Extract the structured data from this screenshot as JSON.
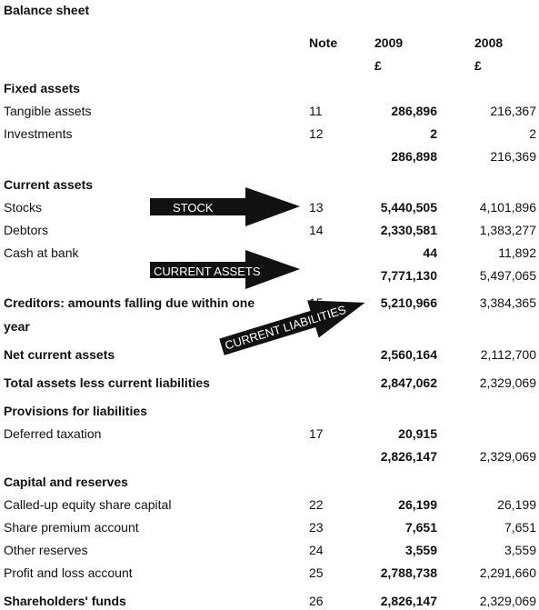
{
  "title": "Balance sheet",
  "headers": {
    "note": "Note",
    "year1": "2009",
    "year2": "2008",
    "currency1": "£",
    "currency2": "£"
  },
  "rows": [
    {
      "label": "Fixed assets",
      "note": "",
      "v2009": "",
      "v2008": "",
      "bold": true
    },
    {
      "label": "Tangible assets",
      "note": "11",
      "v2009": "286,896",
      "v2008": "216,367",
      "bold": false
    },
    {
      "label": "Investments",
      "note": "12",
      "v2009": "2",
      "v2008": "2",
      "bold": false
    },
    {
      "label": "",
      "note": "",
      "v2009": "286,898",
      "v2008": "216,369",
      "bold": false
    },
    {
      "label": "Current assets",
      "note": "",
      "v2009": "",
      "v2008": "",
      "bold": true
    },
    {
      "label": "Stocks",
      "note": "13",
      "v2009": "5,440,505",
      "v2008": "4,101,896",
      "bold": false
    },
    {
      "label": "Debtors",
      "note": "14",
      "v2009": "2,330,581",
      "v2008": "1,383,277",
      "bold": false
    },
    {
      "label": "Cash at bank",
      "note": "",
      "v2009": "44",
      "v2008": "11,892",
      "bold": false
    },
    {
      "label": "",
      "note": "",
      "v2009": "7,771,130",
      "v2008": "5,497,065",
      "bold": false
    },
    {
      "label": "Creditors: amounts falling due within one",
      "note": "15",
      "v2009": "5,210,966",
      "v2008": "3,384,365",
      "bold": true
    },
    {
      "label": "year",
      "note": "",
      "v2009": "",
      "v2008": "",
      "bold": true
    },
    {
      "label": "Net current assets",
      "note": "",
      "v2009": "2,560,164",
      "v2008": "2,112,700",
      "bold": true
    },
    {
      "label": "Total assets less current liabilities",
      "note": "",
      "v2009": "2,847,062",
      "v2008": "2,329,069",
      "bold": true
    },
    {
      "label": "Provisions for liabilities",
      "note": "",
      "v2009": "",
      "v2008": "",
      "bold": true
    },
    {
      "label": "Deferred taxation",
      "note": "17",
      "v2009": "20,915",
      "v2008": "",
      "bold": false
    },
    {
      "label": "",
      "note": "",
      "v2009": "2,826,147",
      "v2008": "2,329,069",
      "bold": false
    },
    {
      "label": "Capital and reserves",
      "note": "",
      "v2009": "",
      "v2008": "",
      "bold": true
    },
    {
      "label": "Called-up equity share capital",
      "note": "22",
      "v2009": "26,199",
      "v2008": "26,199",
      "bold": false
    },
    {
      "label": "Share premium account",
      "note": "23",
      "v2009": "7,651",
      "v2008": "7,651",
      "bold": false
    },
    {
      "label": "Other reserves",
      "note": "24",
      "v2009": "3,559",
      "v2008": "3,559",
      "bold": false
    },
    {
      "label": "Profit and loss account",
      "note": "25",
      "v2009": "2,788,738",
      "v2008": "2,291,660",
      "bold": false
    },
    {
      "label": "Shareholders' funds",
      "note": "26",
      "v2009": "2,826,147",
      "v2008": "2,329,069",
      "bold": true
    }
  ],
  "arrows": [
    {
      "label": "STOCK"
    },
    {
      "label": "CURRENT ASSETS"
    },
    {
      "label": "CURRENT LIABILITIES"
    }
  ]
}
